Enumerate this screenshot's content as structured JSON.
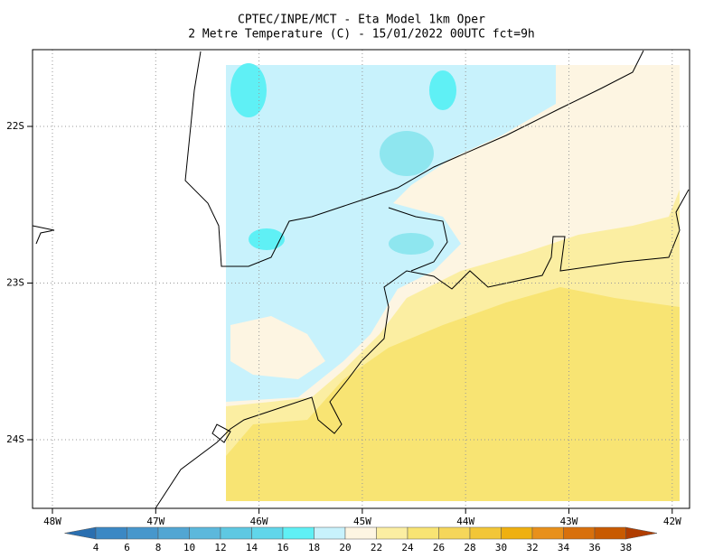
{
  "header": {
    "line1": "CPTEC/INPE/MCT -  Eta Model 1km Oper",
    "line2": "2 Metre Temperature (C) - 15/01/2022 00UTC fct=9h"
  },
  "map": {
    "lon_ticks": [
      "48W",
      "47W",
      "46W",
      "45W",
      "44W",
      "43W",
      "42W"
    ],
    "lat_ticks": [
      "22S",
      "23S",
      "24S"
    ]
  },
  "colorbar": {
    "labels": [
      4,
      6,
      8,
      10,
      12,
      14,
      16,
      18,
      20,
      22,
      24,
      26,
      28,
      30,
      32,
      34,
      36,
      38
    ],
    "colors": [
      "#2a6fb0",
      "#3b88c4",
      "#4797cc",
      "#52a6d3",
      "#5cb8dc",
      "#5ec8e2",
      "#61d6ea",
      "#5ff0f5",
      "#c8f2fc",
      "#fdf5e2",
      "#fbeea2",
      "#f8e473",
      "#f5d65a",
      "#f2c637",
      "#efb010",
      "#e8901b",
      "#d8700c",
      "#c85a00",
      "#b03d00"
    ]
  }
}
